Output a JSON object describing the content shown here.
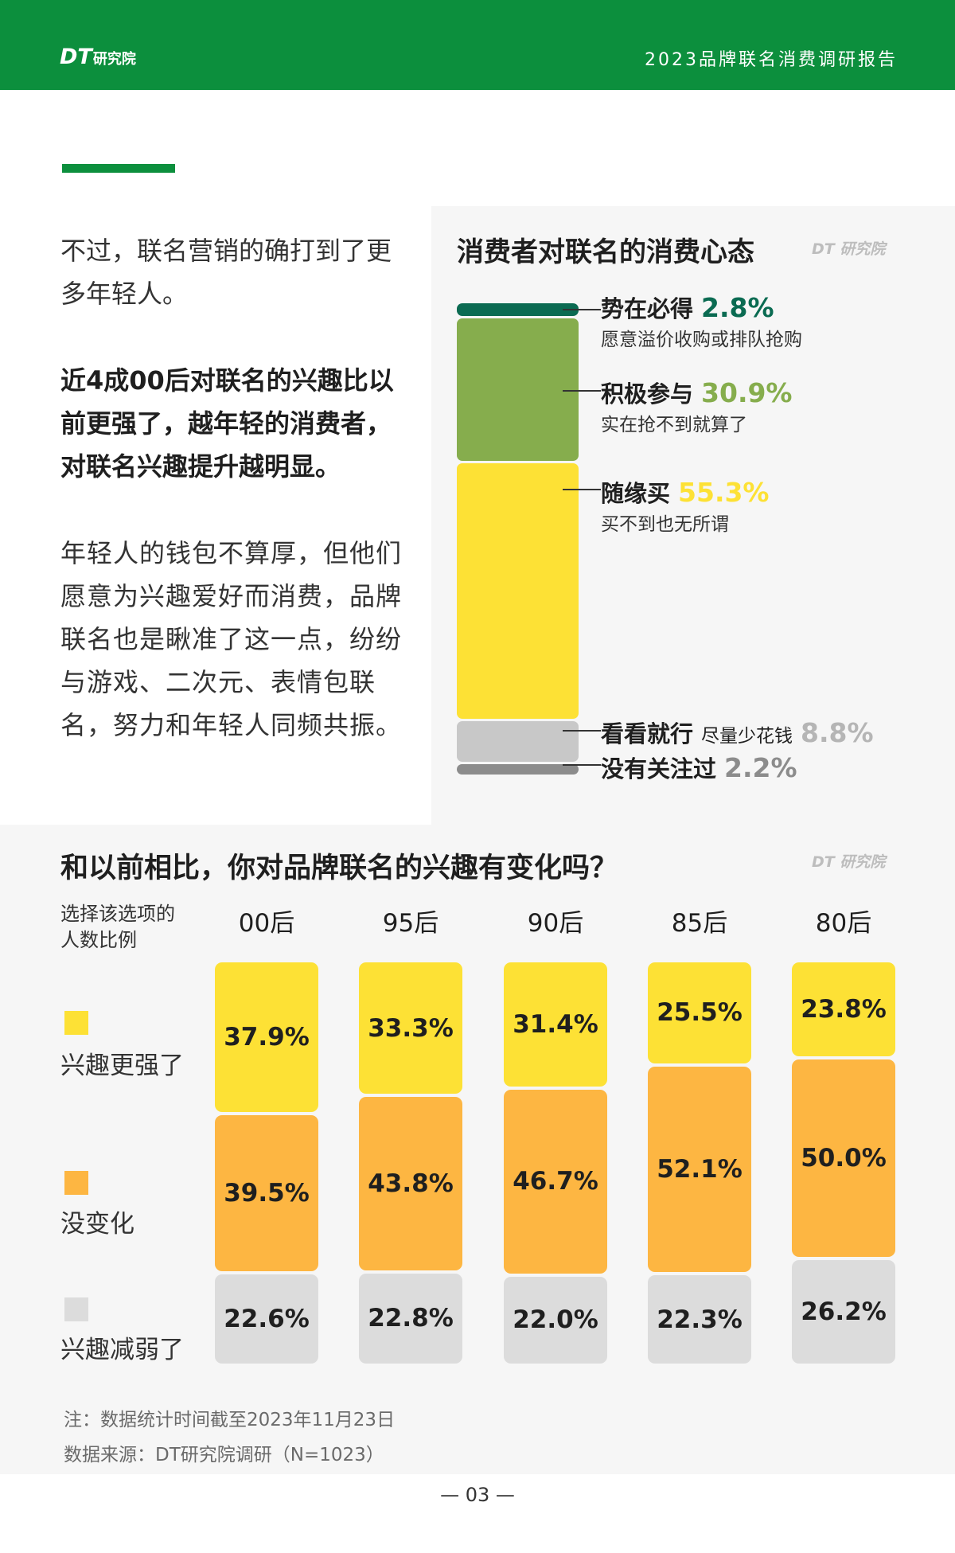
{
  "header": {
    "logo_main": "DT",
    "logo_sub": "研究院",
    "report_title": "2023品牌联名消费调研报告"
  },
  "left": {
    "para1": "不过，联名营销的确打到了更多年轻人。",
    "para2": "近4成00后对联名的兴趣比以前更强了，越年轻的消费者，对联名兴趣提升越明显。",
    "para3": "年轻人的钱包不算厚，但他们愿意为兴趣爱好而消费，品牌联名也是瞅准了这一点，纷纷与游戏、二次元、表情包联名，努力和年轻人同频共振。"
  },
  "chart_data": [
    {
      "type": "bar",
      "title": "消费者对联名的消费心态",
      "watermark": "DT 研究院",
      "stacked": true,
      "unit": "%",
      "categories": [
        "势在必得",
        "积极参与",
        "随缘买",
        "看看就行",
        "没有关注过"
      ],
      "values": [
        2.8,
        30.9,
        55.3,
        8.8,
        2.2
      ],
      "value_labels": [
        "2.8%",
        "30.9%",
        "55.3%",
        "8.8%",
        "2.2%"
      ],
      "descriptions": [
        "愿意溢价收购或排队抢购",
        "实在抢不到就算了",
        "买不到也无所谓",
        "尽量少花钱",
        ""
      ],
      "colors": [
        "#0b6b52",
        "#86ad4d",
        "#fde135",
        "#c8c8c8",
        "#8c8c8c"
      ],
      "label_colors": [
        "#0b6b52",
        "#86ad4d",
        "#fde135",
        "#b5b5b5",
        "#8c8c8c"
      ]
    },
    {
      "type": "bar",
      "title": "和以前相比，你对品牌联名的兴趣有变化吗？",
      "watermark": "DT 研究院",
      "stacked": true,
      "unit": "%",
      "axis_caption": "选择该选项的人数比例",
      "categories": [
        "00后",
        "95后",
        "90后",
        "85后",
        "80后"
      ],
      "series": [
        {
          "name": "兴趣更强了",
          "color": "#fde135",
          "values": [
            37.9,
            33.3,
            31.4,
            25.5,
            23.8
          ],
          "labels": [
            "37.9%",
            "33.3%",
            "31.4%",
            "25.5%",
            "23.8%"
          ]
        },
        {
          "name": "没变化",
          "color": "#fdb642",
          "values": [
            39.5,
            43.8,
            46.7,
            52.1,
            50.0
          ],
          "labels": [
            "39.5%",
            "43.8%",
            "46.7%",
            "52.1%",
            "50.0%"
          ]
        },
        {
          "name": "兴趣减弱了",
          "color": "#dcdcdc",
          "values": [
            22.6,
            22.8,
            22.0,
            22.3,
            26.2
          ],
          "labels": [
            "22.6%",
            "22.8%",
            "22.0%",
            "22.3%",
            "26.2%"
          ]
        }
      ]
    }
  ],
  "notes": {
    "note": "注：数据统计时间截至2023年11月23日",
    "source": "数据来源：DT研究院调研（N=1023）"
  },
  "page_number": "— 03 —"
}
